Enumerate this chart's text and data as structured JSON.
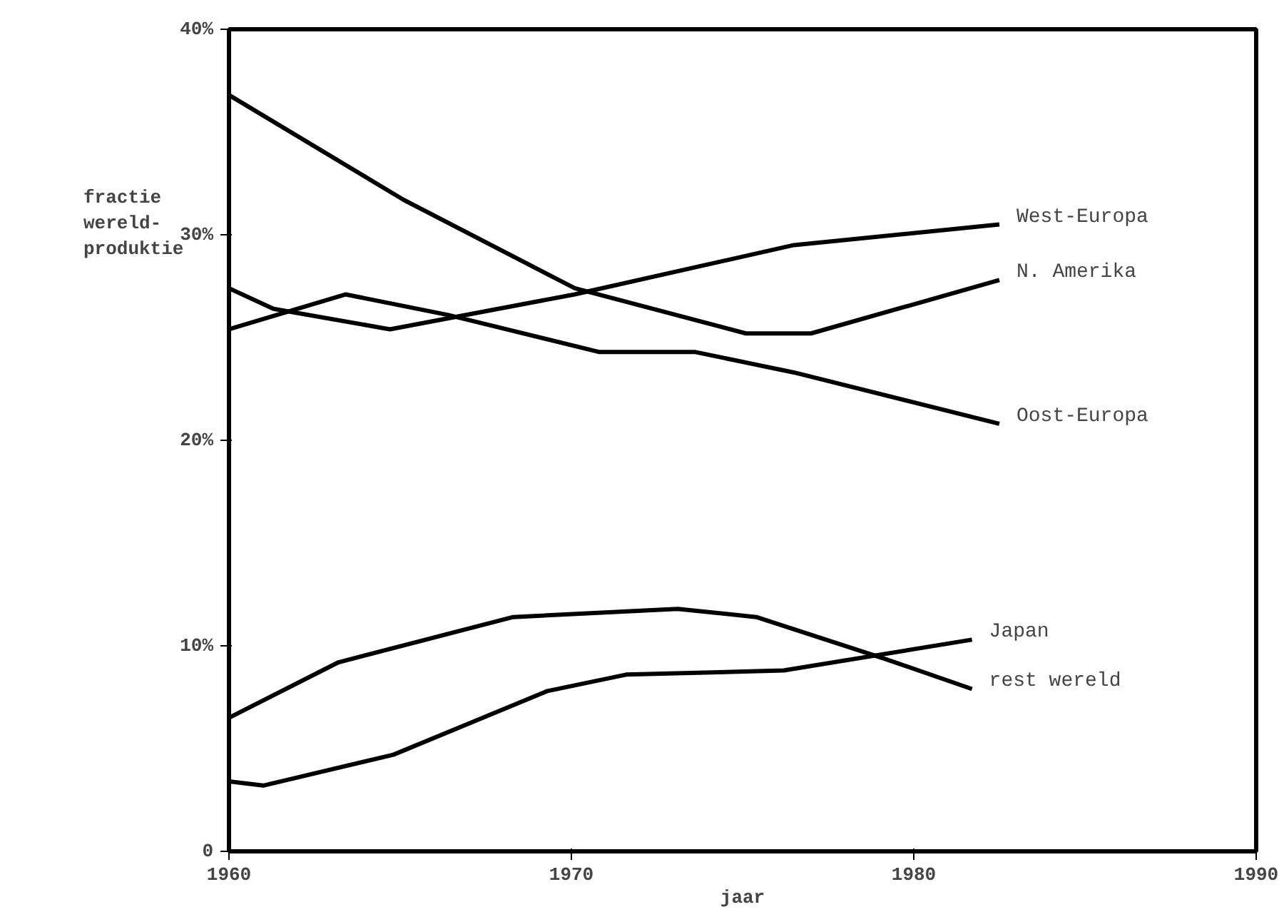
{
  "chart_data": {
    "type": "line",
    "xlabel": "jaar",
    "ylabel": "fractie\nwereld-\nproduktie",
    "xlim": [
      1960,
      1990
    ],
    "xticks": [
      1960,
      1970,
      1980,
      1990
    ],
    "ylim": [
      0,
      40
    ],
    "yticks": [
      0,
      {
        "value": 10,
        "label": "10%"
      },
      {
        "value": 20,
        "label": "20%"
      },
      {
        "value": 30,
        "label": "30%"
      },
      {
        "value": 40,
        "label": "40%"
      }
    ],
    "grid": false,
    "legend": false,
    "marker": "none",
    "line_style": "solid",
    "series": [
      {
        "name": "West-Europa",
        "color": "#000000",
        "x": [
          1960,
          1961.3,
          1964.7,
          1966.6,
          1970.1,
          1976.5,
          1982.5
        ],
        "values": [
          27.4,
          26.4,
          25.4,
          26.0,
          27.1,
          29.5,
          30.5
        ]
      },
      {
        "name": "N. Amerika",
        "color": "#000000",
        "x": [
          1960,
          1965.1,
          1970.1,
          1975.1,
          1977,
          1982.5
        ],
        "values": [
          36.8,
          31.7,
          27.4,
          25.2,
          25.2,
          27.8
        ]
      },
      {
        "name": "Oost-Europa",
        "color": "#000000",
        "x": [
          1960,
          1963.4,
          1966.4,
          1970.8,
          1973.6,
          1976.5,
          1982.5
        ],
        "values": [
          25.4,
          27.1,
          26.1,
          24.3,
          24.3,
          23.3,
          20.8
        ]
      },
      {
        "name": "Japan",
        "color": "#000000",
        "x": [
          1960,
          1961,
          1964.8,
          1969.3,
          1971.6,
          1976.2,
          1981.7
        ],
        "values": [
          3.4,
          3.2,
          4.7,
          7.8,
          8.6,
          8.8,
          10.3
        ]
      },
      {
        "name": "rest wereld",
        "color": "#000000",
        "x": [
          1960,
          1963.2,
          1968.3,
          1973.1,
          1975.4,
          1979.1,
          1981.7
        ],
        "values": [
          6.5,
          9.2,
          11.4,
          11.8,
          11.4,
          9.4,
          7.9
        ]
      }
    ]
  }
}
